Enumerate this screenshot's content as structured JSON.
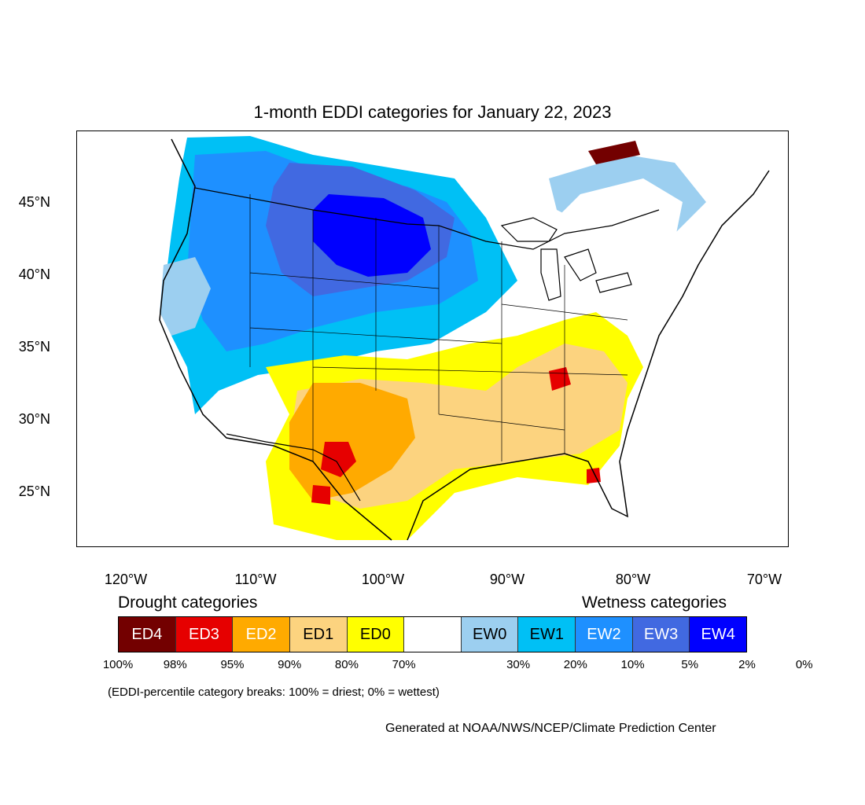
{
  "title": "1-month EDDI categories for January 22, 2023",
  "lat_labels": [
    "45°N",
    "40°N",
    "35°N",
    "30°N",
    "25°N"
  ],
  "lon_labels": [
    "120°W",
    "110°W",
    "100°W",
    "90°W",
    "80°W",
    "70°W"
  ],
  "legend": {
    "drought_heading": "Drought categories",
    "wetness_heading": "Wetness categories",
    "categories": [
      {
        "label": "ED4",
        "color": "#730000",
        "text_color": "#ffffff"
      },
      {
        "label": "ED3",
        "color": "#e60000",
        "text_color": "#ffffff"
      },
      {
        "label": "ED2",
        "color": "#ffaa00",
        "text_color": "#ffffff"
      },
      {
        "label": "ED1",
        "color": "#fcd37f",
        "text_color": "#000000"
      },
      {
        "label": "ED0",
        "color": "#ffff00",
        "text_color": "#000000"
      },
      {
        "label": "",
        "color": "#ffffff",
        "text_color": "#000000"
      },
      {
        "label": "EW0",
        "color": "#9ccff0",
        "text_color": "#000000"
      },
      {
        "label": "EW1",
        "color": "#00c0f5",
        "text_color": "#000000"
      },
      {
        "label": "EW2",
        "color": "#1e90ff",
        "text_color": "#ffffff"
      },
      {
        "label": "EW3",
        "color": "#4169e1",
        "text_color": "#ffffff"
      },
      {
        "label": "EW4",
        "color": "#0000ff",
        "text_color": "#ffffff"
      }
    ],
    "percentiles": [
      "100%",
      "98%",
      "95%",
      "90%",
      "80%",
      "70%",
      "30%",
      "20%",
      "10%",
      "5%",
      "2%",
      "0%"
    ]
  },
  "note": "(EDDI-percentile category breaks: 100% = driest; 0% = wettest)",
  "credit": "Generated at NOAA/NWS/NCEP/Climate Prediction Center"
}
